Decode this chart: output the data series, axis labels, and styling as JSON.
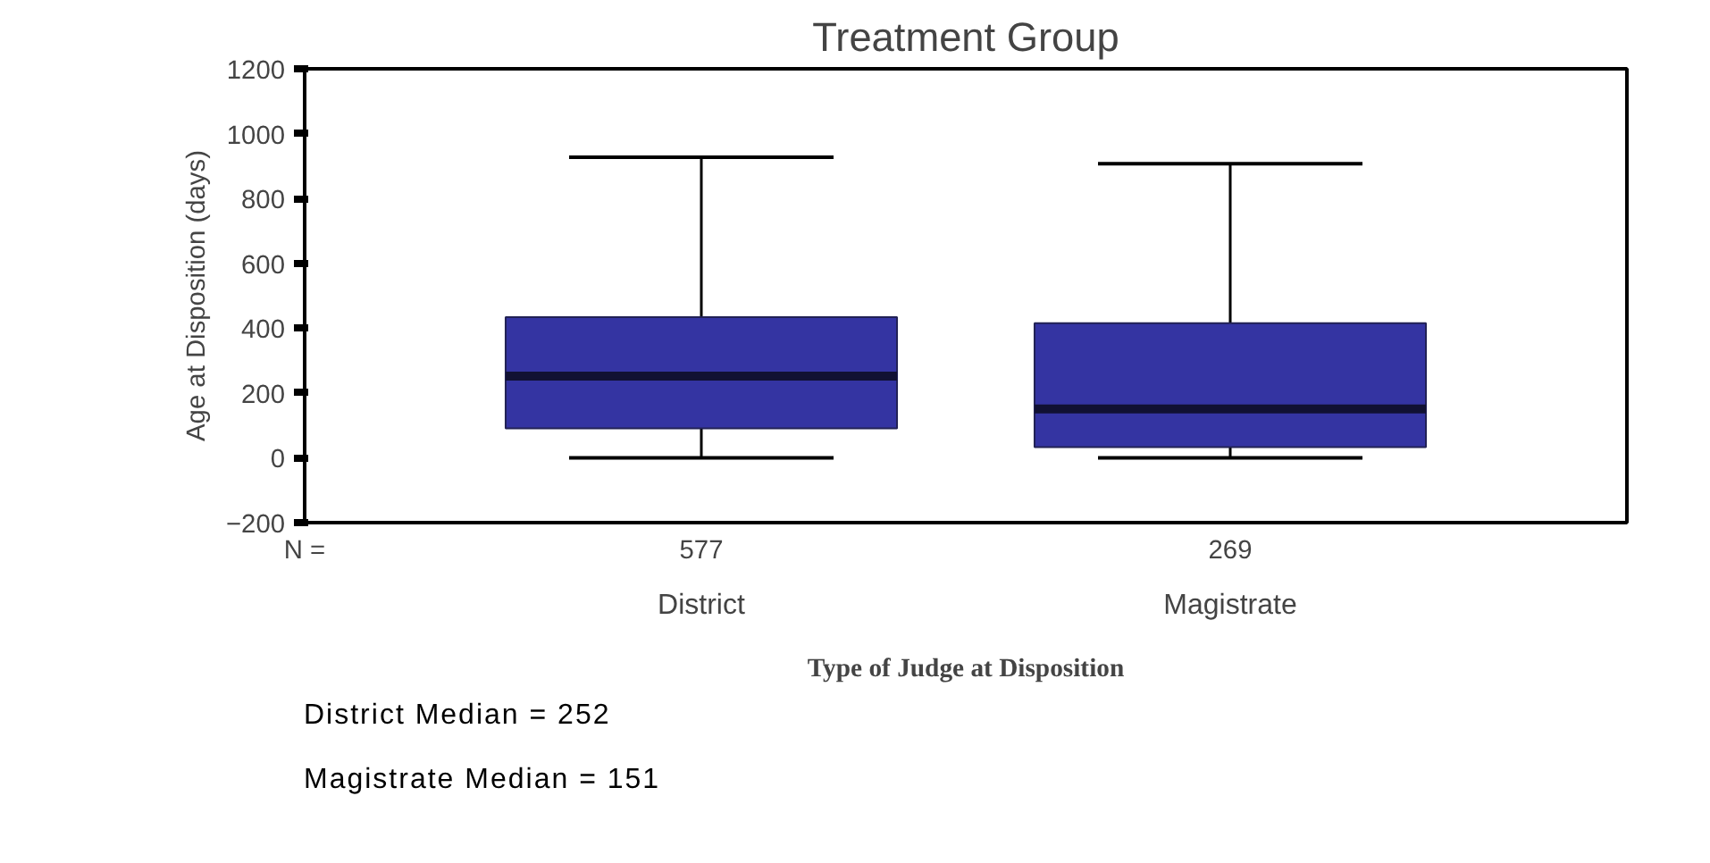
{
  "chart_data": {
    "type": "box",
    "title": "Treatment Group",
    "xlabel": "Type of Judge at Disposition",
    "ylabel": "Age at Disposition (days)",
    "categories": [
      "District",
      "Magistrate"
    ],
    "series": [
      {
        "color": "#3434a2",
        "boxes": [
          {
            "low": 0,
            "q1": 91,
            "median": 252,
            "q3": 434,
            "high": 927
          },
          {
            "low": 0,
            "q1": 33,
            "median": 151,
            "q3": 415,
            "high": 907
          }
        ]
      }
    ],
    "ylim": [
      -200,
      1200
    ],
    "yticks": [
      -200,
      0,
      200,
      400,
      600,
      800,
      1000,
      1200
    ],
    "grid": false,
    "annotations": [
      "N =",
      "577",
      "269",
      "District Median = 252",
      "Magistrate Median = 151"
    ]
  }
}
